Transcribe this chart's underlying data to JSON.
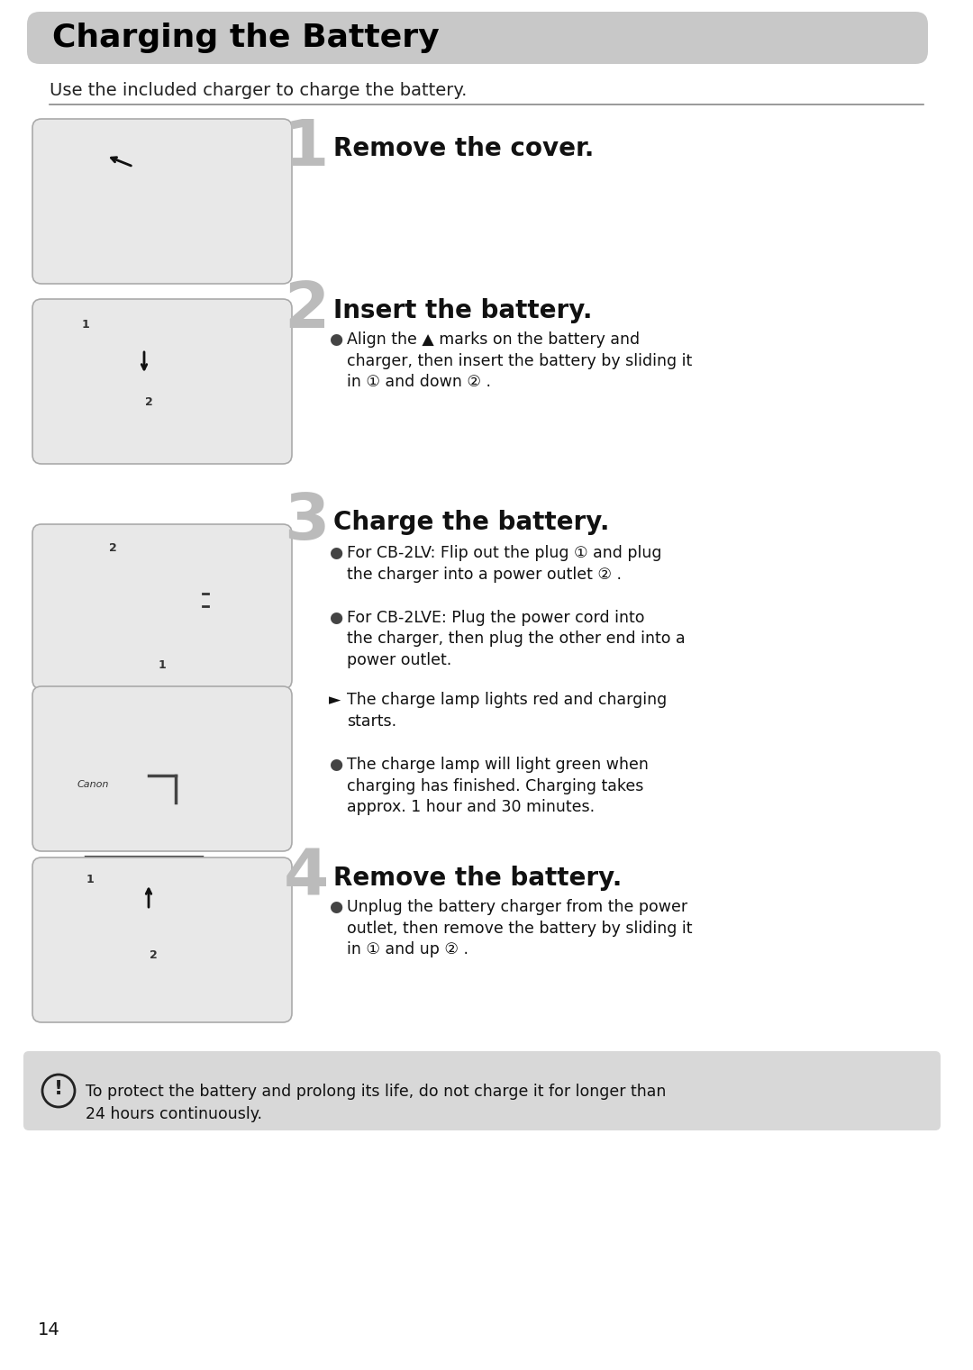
{
  "title": "Charging the Battery",
  "title_bg_color": "#c8c8c8",
  "title_text_color": "#000000",
  "body_bg_color": "#ffffff",
  "subtitle": "Use the included charger to charge the battery.",
  "page_number": "14",
  "steps": [
    {
      "number": "1",
      "heading": "Remove the cover.",
      "bullets": []
    },
    {
      "number": "2",
      "heading": "Insert the battery.",
      "bullets": [
        "Align the ▲ marks on the battery and charger, then insert the battery by sliding it\nin ① and down ② ."
      ]
    },
    {
      "number": "3",
      "heading": "Charge the battery.",
      "bullets": [
        "For CB-2LV: Flip out the plug ① and plug\nthe charger into a power outlet ② .",
        "For CB-2LVE: Plug the power cord into\nthe charger, then plug the other end into a\npower outlet.",
        "► The charge lamp lights red and charging\nstarts.",
        "The charge lamp will light green when\ncharging has finished. Charging takes\napprox. 1 hour and 30 minutes."
      ]
    },
    {
      "number": "4",
      "heading": "Remove the battery.",
      "bullets": [
        "Unplug the battery charger from the power\noutlet, then remove the battery by sliding it\nin ① and up ② ."
      ]
    }
  ],
  "warning_text": "To protect the battery and prolong its life, do not charge it for longer than\n24 hours continuously.",
  "warning_bg_color": "#d8d8d8",
  "image_box_color": "#e8e8e8",
  "image_border_color": "#aaaaaa"
}
